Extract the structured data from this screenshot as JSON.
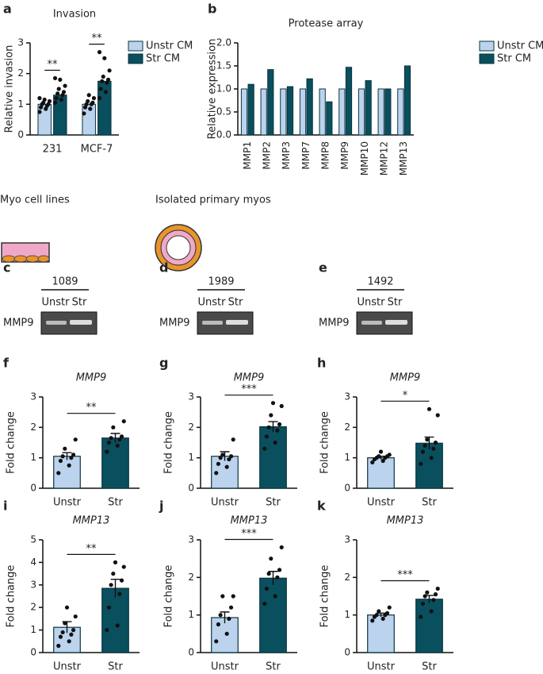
{
  "chart_data": [
    {
      "type": "bar",
      "panel_label": "a",
      "title": "Invasion",
      "y_label": "Relative invasion",
      "categories": [
        "231",
        "MCF-7"
      ],
      "annotations": [
        "**",
        "**"
      ],
      "series": [
        {
          "name": "Unstr CM",
          "color": "#bcd3ee",
          "values": [
            1.0,
            1.0
          ],
          "points": [
            [
              0.75,
              0.85,
              0.9,
              0.95,
              1.0,
              1.0,
              1.05,
              1.1,
              1.15,
              1.2
            ],
            [
              0.7,
              0.85,
              0.9,
              1.0,
              1.0,
              1.05,
              1.1,
              1.2,
              1.3
            ]
          ]
        },
        {
          "name": "Str CM",
          "color": "#0a4f5d",
          "values": [
            1.3,
            1.75
          ],
          "points": [
            [
              1.05,
              1.15,
              1.2,
              1.3,
              1.35,
              1.4,
              1.5,
              1.6,
              1.8,
              1.85
            ],
            [
              1.2,
              1.4,
              1.5,
              1.7,
              1.75,
              1.8,
              1.9,
              2.1,
              2.5,
              2.7
            ]
          ]
        }
      ],
      "ylim": [
        0,
        3
      ],
      "yticks": [
        0,
        1,
        2,
        3
      ]
    },
    {
      "type": "bar",
      "panel_label": "b",
      "title": "Protease array",
      "y_label": "Relative expression",
      "categories": [
        "MMP1",
        "MMP2",
        "MMP3",
        "MMP7",
        "MMP8",
        "MMP9",
        "MMP10",
        "MMP12",
        "MMP13"
      ],
      "series": [
        {
          "name": "Unstr CM",
          "color": "#bcd3ee",
          "values": [
            1.0,
            1.0,
            1.0,
            1.0,
            1.0,
            1.0,
            1.0,
            1.0,
            1.0
          ]
        },
        {
          "name": "Str CM",
          "color": "#0a4f5d",
          "values": [
            1.1,
            1.42,
            1.05,
            1.22,
            0.72,
            1.47,
            1.18,
            1.0,
            1.5
          ]
        }
      ],
      "ylim": [
        0,
        2
      ],
      "yticks": [
        {
          "value": 0,
          "label": "0.0"
        },
        0.5,
        {
          "value": 1,
          "label": "1.0"
        },
        1.5,
        {
          "value": 2,
          "label": "2.0"
        }
      ]
    },
    {
      "type": "bar",
      "panel_label": "f",
      "title": "MMP9",
      "y_label": "Fold change",
      "categories": [
        "Unstr",
        "Str"
      ],
      "annotation": "**",
      "colors": [
        "#bcd3ee",
        "#0a4f5d"
      ],
      "values": [
        1.05,
        1.65
      ],
      "errors": [
        0.12,
        0.15
      ],
      "points": [
        [
          0.5,
          0.75,
          0.9,
          1.0,
          1.05,
          1.1,
          1.3,
          1.6
        ],
        [
          1.2,
          1.4,
          1.5,
          1.6,
          1.65,
          1.7,
          2.0,
          2.2
        ]
      ],
      "ylim": [
        0,
        3
      ],
      "yticks": [
        0,
        1,
        2,
        3
      ]
    },
    {
      "type": "bar",
      "panel_label": "g",
      "title": "MMP9",
      "y_label": "Fold change",
      "categories": [
        "Unstr",
        "Str"
      ],
      "annotation": "***",
      "colors": [
        "#bcd3ee",
        "#0a4f5d"
      ],
      "values": [
        1.05,
        2.02
      ],
      "errors": [
        0.15,
        0.17
      ],
      "points": [
        [
          0.5,
          0.7,
          0.8,
          0.95,
          1.0,
          1.05,
          1.1,
          1.6
        ],
        [
          1.3,
          1.5,
          1.7,
          1.9,
          2.0,
          2.1,
          2.4,
          2.7,
          2.8
        ]
      ],
      "ylim": [
        0,
        3
      ],
      "yticks": [
        0,
        1,
        2,
        3
      ]
    },
    {
      "type": "bar",
      "panel_label": "h",
      "title": "MMP9",
      "y_label": "Fold change",
      "categories": [
        "Unstr",
        "Str"
      ],
      "annotation": "*",
      "colors": [
        "#bcd3ee",
        "#0a4f5d"
      ],
      "values": [
        1.0,
        1.48
      ],
      "errors": [
        0.05,
        0.2
      ],
      "points": [
        [
          0.85,
          0.9,
          0.95,
          1.0,
          1.0,
          1.05,
          1.05,
          1.1,
          1.2
        ],
        [
          0.8,
          1.0,
          1.2,
          1.3,
          1.4,
          1.5,
          1.6,
          2.4,
          2.6
        ]
      ],
      "ylim": [
        0,
        3
      ],
      "yticks": [
        0,
        1,
        2,
        3
      ]
    },
    {
      "type": "bar",
      "panel_label": "i",
      "title": "MMP13",
      "y_label": "Fold change",
      "categories": [
        "Unstr",
        "Str"
      ],
      "annotation": "**",
      "colors": [
        "#bcd3ee",
        "#0a4f5d"
      ],
      "values": [
        1.12,
        2.85
      ],
      "errors": [
        0.25,
        0.4
      ],
      "points": [
        [
          0.3,
          0.5,
          0.7,
          0.8,
          0.9,
          1.0,
          1.3,
          1.6,
          2.0
        ],
        [
          1.0,
          1.2,
          2.0,
          2.6,
          3.0,
          3.2,
          3.5,
          3.8,
          4.0
        ]
      ],
      "ylim": [
        0,
        5
      ],
      "yticks": [
        0,
        1,
        2,
        3,
        4,
        5
      ]
    },
    {
      "type": "bar",
      "panel_label": "j",
      "title": "MMP13",
      "y_label": "Fold change",
      "categories": [
        "Unstr",
        "Str"
      ],
      "annotation": "***",
      "colors": [
        "#bcd3ee",
        "#0a4f5d"
      ],
      "values": [
        0.93,
        1.98
      ],
      "errors": [
        0.15,
        0.18
      ],
      "points": [
        [
          0.3,
          0.5,
          0.75,
          0.9,
          1.0,
          1.2,
          1.5,
          1.5
        ],
        [
          1.3,
          1.5,
          1.7,
          2.0,
          2.1,
          2.2,
          2.5,
          2.8
        ]
      ],
      "ylim": [
        0,
        3
      ],
      "yticks": [
        0,
        1,
        2,
        3
      ]
    },
    {
      "type": "bar",
      "panel_label": "k",
      "title": "MMP13",
      "y_label": "Fold change",
      "categories": [
        "Unstr",
        "Str"
      ],
      "annotation": "***",
      "colors": [
        "#bcd3ee",
        "#0a4f5d"
      ],
      "values": [
        1.0,
        1.42
      ],
      "errors": [
        0.05,
        0.1
      ],
      "points": [
        [
          0.85,
          0.9,
          0.95,
          1.0,
          1.0,
          1.05,
          1.1,
          1.2
        ],
        [
          0.95,
          1.1,
          1.3,
          1.4,
          1.5,
          1.55,
          1.6,
          1.7
        ]
      ],
      "ylim": [
        0,
        3
      ],
      "yticks": [
        0,
        1,
        2,
        3
      ]
    }
  ],
  "sections": {
    "cell_lines": "Myo cell lines",
    "primary": "Isolated primary myos"
  },
  "gels": [
    {
      "panel_label": "c",
      "title": "1089",
      "lanes": [
        "Unstr",
        "Str"
      ],
      "band": "MMP9"
    },
    {
      "panel_label": "d",
      "title": "1989",
      "lanes": [
        "Unstr",
        "Str"
      ],
      "band": "MMP9"
    },
    {
      "panel_label": "e",
      "title": "1492",
      "lanes": [
        "Unstr",
        "Str"
      ],
      "band": "MMP9"
    }
  ]
}
